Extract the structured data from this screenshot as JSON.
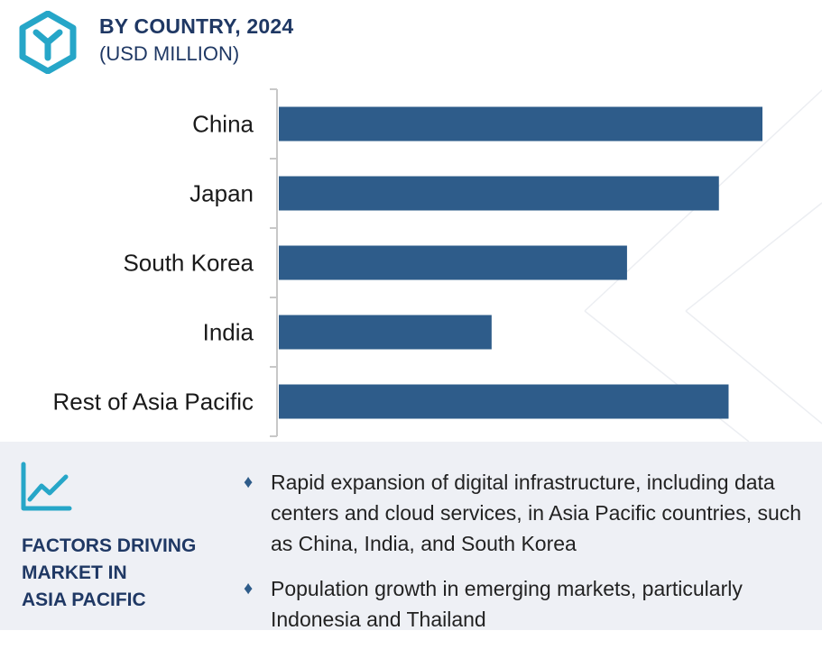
{
  "header": {
    "title": "BY COUNTRY, 2024",
    "subtitle": "(USD MILLION)"
  },
  "colors": {
    "bar": "#2e5c8a",
    "heading": "#1f3864",
    "accent": "#26a6c8",
    "panel_bg": "#eef0f5"
  },
  "icons": {
    "logo": "hexagon-y-logo-icon",
    "trend": "trend-chart-icon",
    "bullet": "diamond-bullet-icon"
  },
  "chart_data": {
    "type": "bar",
    "orientation": "horizontal",
    "categories": [
      "China",
      "Japan",
      "South Korea",
      "India",
      "Rest of Asia Pacific"
    ],
    "values": [
      100,
      91,
      72,
      44,
      93
    ],
    "xlim": [
      0,
      100
    ],
    "grid": false,
    "legend": "none"
  },
  "factors": {
    "title_lines": [
      "FACTORS DRIVING",
      "MARKET IN",
      "ASIA PACIFIC"
    ],
    "bullet_symbol": "♦",
    "items": [
      "Rapid expansion of digital infrastructure, including data centers and cloud services, in Asia Pacific countries, such as China, India, and South Korea",
      "Population growth in emerging markets, particularly Indonesia and Thailand"
    ]
  }
}
